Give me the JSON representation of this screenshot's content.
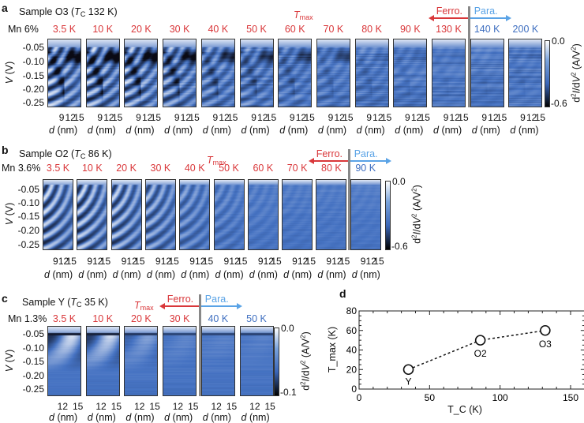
{
  "panels": [
    {
      "letter": "a",
      "sample": "Sample O3",
      "tc_label": "132 K",
      "mn": "Mn 6%",
      "temps": [
        "3.5 K",
        "10 K",
        "20 K",
        "30 K",
        "40 K",
        "50 K",
        "60 K",
        "70 K",
        "80 K",
        "90 K",
        "130 K",
        "140 K",
        "200 K"
      ],
      "ferro_count": 11,
      "tmax_label": "max",
      "ferro_label": "Ferro.",
      "para_label": "Para.",
      "ylabel": "V (V)",
      "yticks": [
        "-0.05",
        "-0.10",
        "-0.15",
        "-0.20",
        "-0.25"
      ],
      "xticks": [
        "9",
        "12",
        "15"
      ],
      "xlabel": "(nm)",
      "colorbar": {
        "max": "0.0",
        "min": "-0.6",
        "label": "(A/V"
      }
    },
    {
      "letter": "b",
      "sample": "Sample O2",
      "tc_label": "86 K",
      "mn": "Mn 3.6%",
      "temps": [
        "3.5 K",
        "10 K",
        "20 K",
        "30 K",
        "40 K",
        "50 K",
        "60 K",
        "70 K",
        "80 K",
        "90 K"
      ],
      "ferro_count": 9,
      "tmax_label": "max",
      "ferro_label": "Ferro.",
      "para_label": "Para.",
      "ylabel": "V (V)",
      "yticks": [
        "-0.05",
        "-0.10",
        "-0.15",
        "-0.20",
        "-0.25"
      ],
      "xticks": [
        "9",
        "12",
        "15"
      ],
      "xlabel": "(nm)",
      "colorbar": {
        "max": "0.0",
        "min": "-0.6",
        "label": "(A/V"
      }
    },
    {
      "letter": "c",
      "sample": "Sample Y",
      "tc_label": "35 K",
      "mn": "Mn 1.3%",
      "temps": [
        "3.5 K",
        "10 K",
        "20 K",
        "30 K",
        "40 K",
        "50 K"
      ],
      "ferro_count": 4,
      "tmax_label": "max",
      "ferro_label": "Ferro.",
      "para_label": "Para.",
      "ylabel": "V (V)",
      "yticks": [
        "-0.05",
        "-0.10",
        "-0.15",
        "-0.20",
        "-0.25"
      ],
      "xticks": [
        "12",
        "15"
      ],
      "xlabel": "(nm)",
      "colorbar": {
        "max": "0.0",
        "min": "-0.1",
        "label": "(A/V"
      }
    }
  ],
  "colors": {
    "ferro": "#d9373a",
    "para": "#5aa3e6",
    "para_temp": "#3f6fc0"
  },
  "chart_data": {
    "letter": "d",
    "type": "scatter",
    "x": [
      35,
      86,
      132
    ],
    "y": [
      20,
      50,
      60
    ],
    "point_labels": [
      "Y",
      "O2",
      "O3"
    ],
    "xlabel": "T_C (K)",
    "ylabel": "T_max (K)",
    "xlim": [
      0,
      160
    ],
    "ylim": [
      0,
      80
    ],
    "xticks": [
      0,
      50,
      100,
      150
    ],
    "yticks": [
      0,
      20,
      40,
      60,
      80
    ],
    "marker": "open-circle",
    "connector": "dashed",
    "grid": false
  }
}
